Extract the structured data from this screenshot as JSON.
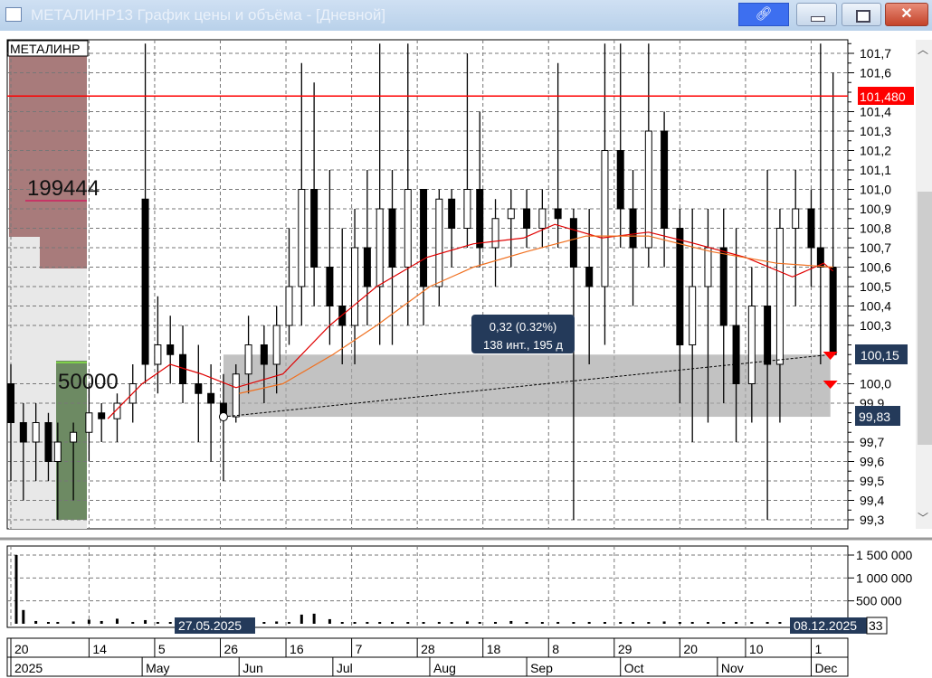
{
  "window": {
    "title": "МЕТАЛИНР13 График цены и объёма - [Дневной]",
    "buttons": {
      "link": "link-icon",
      "minimize": "minimize",
      "maximize": "maximize",
      "close": "close"
    }
  },
  "chart_data": [
    {
      "type": "candlestick",
      "instrument_label": "МЕТАЛИНР",
      "ylim": [
        99.3,
        101.7
      ],
      "y_ticks": [
        "101,7",
        "101,6",
        "101,4",
        "101,3",
        "101,2",
        "101,1",
        "101,0",
        "100,9",
        "100,8",
        "100,7",
        "100,6",
        "100,5",
        "100,4",
        "100,3",
        "100,0",
        "99,9",
        "99,7",
        "99,6",
        "99,5",
        "99,4",
        "99,3"
      ],
      "price_line": {
        "value": 101.48,
        "label": "101,480",
        "color": "#ff0000"
      },
      "range_labels": {
        "high": "100,15",
        "low": "99,83"
      },
      "measure": {
        "from_date": "2025-05-27",
        "to_date": "2025-12-08",
        "from_price": 99.83,
        "to_price": 100.15,
        "line1": "0,32 (0.32%)",
        "line2": "138 инт., 195 д"
      },
      "orderbook": {
        "ask_volume": "199444",
        "bid_volume": "50000",
        "ask_color": "#a87b7b",
        "bid_color": "#6d8a63"
      },
      "candles": [
        [
          "2025-03-20",
          100.0,
          100.1,
          99.5,
          99.8
        ],
        [
          "2025-03-24",
          99.8,
          99.9,
          99.4,
          99.7
        ],
        [
          "2025-03-28",
          99.7,
          99.9,
          99.5,
          99.8
        ],
        [
          "2025-04-01",
          99.8,
          99.85,
          99.5,
          99.6
        ],
        [
          "2025-04-04",
          99.6,
          99.8,
          99.3,
          99.7
        ],
        [
          "2025-04-09",
          99.7,
          99.8,
          99.4,
          99.75
        ],
        [
          "2025-04-14",
          99.75,
          100.0,
          99.6,
          99.85
        ],
        [
          "2025-04-18",
          99.85,
          99.9,
          99.7,
          99.82
        ],
        [
          "2025-04-23",
          99.82,
          99.95,
          99.7,
          99.9
        ],
        [
          "2025-04-28",
          99.9,
          100.1,
          99.8,
          100.0
        ],
        [
          "2025-05-02",
          100.95,
          101.75,
          100.0,
          100.1
        ],
        [
          "2025-05-06",
          100.1,
          100.45,
          99.95,
          100.2
        ],
        [
          "2025-05-10",
          100.2,
          100.35,
          100.0,
          100.15
        ],
        [
          "2025-05-14",
          100.15,
          100.3,
          99.9,
          100.0
        ],
        [
          "2025-05-19",
          100.0,
          100.2,
          99.7,
          99.95
        ],
        [
          "2025-05-23",
          99.95,
          100.1,
          99.6,
          99.9
        ],
        [
          "2025-05-27",
          99.9,
          100.05,
          99.5,
          99.83
        ],
        [
          "2025-05-31",
          99.83,
          100.1,
          99.8,
          100.05
        ],
        [
          "2025-06-04",
          100.05,
          100.35,
          99.95,
          100.2
        ],
        [
          "2025-06-09",
          100.2,
          100.3,
          99.9,
          100.1
        ],
        [
          "2025-06-13",
          100.1,
          100.4,
          99.95,
          100.3
        ],
        [
          "2025-06-17",
          100.3,
          100.8,
          100.2,
          100.5
        ],
        [
          "2025-06-21",
          100.5,
          101.65,
          100.3,
          101.0
        ],
        [
          "2025-06-25",
          101.0,
          101.55,
          100.4,
          100.6
        ],
        [
          "2025-06-30",
          100.6,
          101.1,
          100.2,
          100.4
        ],
        [
          "2025-07-04",
          100.4,
          100.8,
          100.1,
          100.3
        ],
        [
          "2025-07-08",
          100.3,
          100.9,
          100.1,
          100.7
        ],
        [
          "2025-07-12",
          100.7,
          101.1,
          100.3,
          100.5
        ],
        [
          "2025-07-16",
          100.5,
          101.75,
          100.2,
          100.9
        ],
        [
          "2025-07-20",
          100.9,
          101.1,
          100.2,
          100.6
        ],
        [
          "2025-07-25",
          100.6,
          101.75,
          100.3,
          101.0
        ],
        [
          "2025-07-30",
          101.0,
          101.0,
          100.3,
          100.5
        ],
        [
          "2025-08-04",
          100.5,
          101.0,
          100.4,
          100.95
        ],
        [
          "2025-08-08",
          100.95,
          101.0,
          100.6,
          100.8
        ],
        [
          "2025-08-13",
          100.8,
          101.7,
          100.7,
          101.0
        ],
        [
          "2025-08-17",
          101.0,
          101.4,
          100.6,
          100.7
        ],
        [
          "2025-08-22",
          100.7,
          100.95,
          100.5,
          100.85
        ],
        [
          "2025-08-27",
          100.85,
          101.0,
          100.6,
          100.9
        ],
        [
          "2025-09-01",
          100.9,
          101.0,
          100.7,
          100.8
        ],
        [
          "2025-09-06",
          100.8,
          101.0,
          100.7,
          100.9
        ],
        [
          "2025-09-11",
          100.9,
          101.65,
          100.7,
          100.85
        ],
        [
          "2025-09-16",
          100.85,
          100.9,
          99.3,
          100.6
        ],
        [
          "2025-09-21",
          100.6,
          100.9,
          100.1,
          100.5
        ],
        [
          "2025-09-26",
          100.5,
          101.75,
          100.2,
          101.2
        ],
        [
          "2025-10-01",
          101.2,
          101.75,
          100.7,
          100.9
        ],
        [
          "2025-10-05",
          100.9,
          101.1,
          100.4,
          100.7
        ],
        [
          "2025-10-10",
          100.7,
          101.75,
          100.6,
          101.3
        ],
        [
          "2025-10-15",
          101.3,
          101.4,
          100.6,
          100.8
        ],
        [
          "2025-10-20",
          100.8,
          100.9,
          99.9,
          100.2
        ],
        [
          "2025-10-24",
          100.2,
          100.9,
          99.7,
          100.5
        ],
        [
          "2025-10-29",
          100.5,
          100.9,
          99.8,
          100.7
        ],
        [
          "2025-11-03",
          100.7,
          100.9,
          99.9,
          100.3
        ],
        [
          "2025-11-07",
          100.3,
          100.8,
          99.7,
          100.0
        ],
        [
          "2025-11-12",
          100.0,
          100.6,
          99.8,
          100.4
        ],
        [
          "2025-11-17",
          100.4,
          101.1,
          99.3,
          100.1
        ],
        [
          "2025-11-21",
          100.1,
          100.9,
          99.8,
          100.8
        ],
        [
          "2025-11-26",
          100.8,
          101.1,
          100.4,
          100.9
        ],
        [
          "2025-12-01",
          100.9,
          101.0,
          100.5,
          100.7
        ],
        [
          "2025-12-04",
          100.7,
          101.75,
          100.1,
          100.6
        ],
        [
          "2025-12-08",
          100.6,
          101.6,
          100.15,
          100.15
        ]
      ],
      "moving_averages": [
        {
          "color": "#e00000",
          "points": [
            [
              "2025-04-20",
              99.82
            ],
            [
              "2025-05-01",
              100.0
            ],
            [
              "2025-05-10",
              100.1
            ],
            [
              "2025-05-20",
              100.05
            ],
            [
              "2025-05-31",
              99.98
            ],
            [
              "2025-06-15",
              100.05
            ],
            [
              "2025-06-30",
              100.3
            ],
            [
              "2025-07-15",
              100.5
            ],
            [
              "2025-07-31",
              100.65
            ],
            [
              "2025-08-15",
              100.72
            ],
            [
              "2025-08-31",
              100.75
            ],
            [
              "2025-09-10",
              100.82
            ],
            [
              "2025-09-25",
              100.75
            ],
            [
              "2025-10-10",
              100.78
            ],
            [
              "2025-10-25",
              100.72
            ],
            [
              "2025-11-10",
              100.65
            ],
            [
              "2025-11-25",
              100.55
            ],
            [
              "2025-12-05",
              100.62
            ],
            [
              "2025-12-08",
              100.58
            ]
          ]
        },
        {
          "color": "#f07020",
          "points": [
            [
              "2025-06-01",
              99.95
            ],
            [
              "2025-06-15",
              100.0
            ],
            [
              "2025-07-01",
              100.15
            ],
            [
              "2025-07-15",
              100.3
            ],
            [
              "2025-08-01",
              100.5
            ],
            [
              "2025-08-15",
              100.6
            ],
            [
              "2025-09-01",
              100.68
            ],
            [
              "2025-09-20",
              100.76
            ],
            [
              "2025-10-10",
              100.76
            ],
            [
              "2025-10-30",
              100.68
            ],
            [
              "2025-11-20",
              100.62
            ],
            [
              "2025-12-08",
              100.6
            ]
          ]
        }
      ]
    },
    {
      "type": "bar",
      "ylim": [
        0,
        1500000
      ],
      "y_ticks": [
        {
          "v": 1500000,
          "label": "1 500 000"
        },
        {
          "v": 1000000,
          "label": "1 000 000"
        },
        {
          "v": 500000,
          "label": "500 000"
        }
      ],
      "cursor_labels": {
        "left": "27.05.2025",
        "right": "08.12.2025",
        "value_partial": "33"
      },
      "volumes": [
        1500000,
        300000,
        60000,
        30000,
        40000,
        50000,
        90000,
        60000,
        110000,
        40000,
        80000,
        30000,
        30000,
        40000,
        30000,
        40000,
        120000,
        30000,
        40000,
        30000,
        50000,
        40000,
        200000,
        220000,
        100000,
        30000,
        30000,
        40000,
        30000,
        40000,
        30000,
        30000,
        40000,
        30000,
        50000,
        30000,
        40000,
        60000,
        30000,
        30000,
        40000,
        30000,
        40000,
        30000,
        30000,
        40000,
        30000,
        50000,
        30000,
        40000,
        30000,
        30000,
        40000,
        30000,
        40000,
        30000,
        40000,
        30000,
        60000,
        100000
      ]
    }
  ],
  "x_axis": {
    "day_ticks": [
      {
        "d": "2025-03-20",
        "label": "20"
      },
      {
        "d": "2025-04-14",
        "label": "14"
      },
      {
        "d": "2025-05-05",
        "label": "5"
      },
      {
        "d": "2025-05-26",
        "label": "26"
      },
      {
        "d": "2025-06-16",
        "label": "16"
      },
      {
        "d": "2025-07-07",
        "label": "7"
      },
      {
        "d": "2025-07-28",
        "label": "28"
      },
      {
        "d": "2025-08-18",
        "label": "18"
      },
      {
        "d": "2025-09-08",
        "label": "8"
      },
      {
        "d": "2025-09-29",
        "label": "29"
      },
      {
        "d": "2025-10-20",
        "label": "20"
      },
      {
        "d": "2025-11-10",
        "label": "10"
      },
      {
        "d": "2025-12-01",
        "label": "1"
      }
    ],
    "month_ticks": [
      {
        "d": "2025-03-20",
        "label": "2025"
      },
      {
        "d": "2025-05-01",
        "label": "May"
      },
      {
        "d": "2025-06-01",
        "label": "Jun"
      },
      {
        "d": "2025-07-01",
        "label": "Jul"
      },
      {
        "d": "2025-08-01",
        "label": "Aug"
      },
      {
        "d": "2025-09-01",
        "label": "Sep"
      },
      {
        "d": "2025-10-01",
        "label": "Oct"
      },
      {
        "d": "2025-11-01",
        "label": "Nov"
      },
      {
        "d": "2025-12-01",
        "label": "Dec"
      }
    ]
  }
}
